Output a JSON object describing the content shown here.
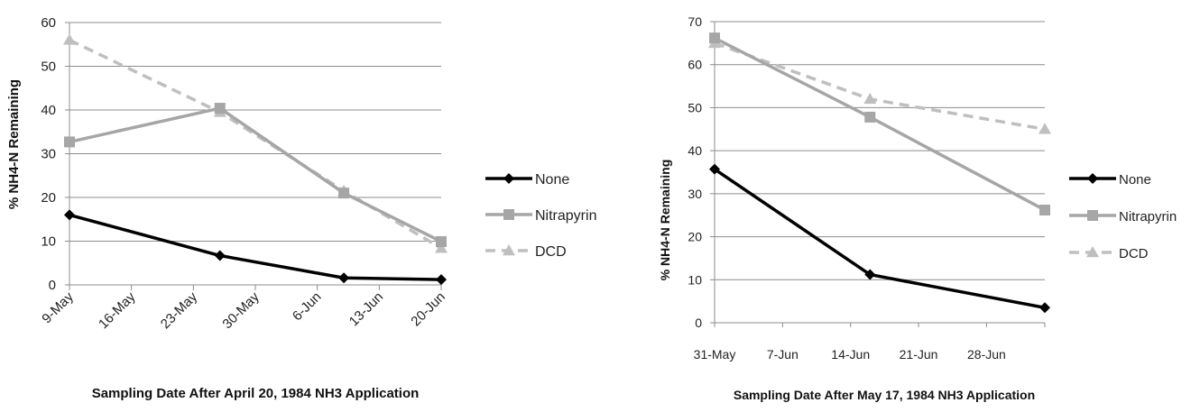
{
  "chart_data": [
    {
      "type": "line",
      "title": "",
      "xlabel": "Sampling Date After April 20, 1984 NH3 Application",
      "ylabel": "% NH4-N Remaining",
      "ylim": [
        0,
        60
      ],
      "yticks": [
        "0",
        "10",
        "20",
        "30",
        "40",
        "50",
        "60"
      ],
      "xlim": [
        "1984-05-09",
        "1984-06-20"
      ],
      "xticks": [
        {
          "date": "1984-05-09",
          "label": "9-May"
        },
        {
          "date": "1984-05-16",
          "label": "16-May"
        },
        {
          "date": "1984-05-23",
          "label": "23-May"
        },
        {
          "date": "1984-05-30",
          "label": "30-May"
        },
        {
          "date": "1984-06-06",
          "label": "6-Jun"
        },
        {
          "date": "1984-06-13",
          "label": "13-Jun"
        },
        {
          "date": "1984-06-20",
          "label": "20-Jun"
        }
      ],
      "grid": "horizontal",
      "legend": "right",
      "series": [
        {
          "name": "None",
          "color": "#000000",
          "marker": "diamond",
          "dash": "solid",
          "points": [
            {
              "x": "1984-05-09",
              "y": 16
            },
            {
              "x": "1984-05-26",
              "y": 6.7
            },
            {
              "x": "1984-06-09",
              "y": 1.6
            },
            {
              "x": "1984-06-20",
              "y": 1.2
            }
          ]
        },
        {
          "name": "Nitrapyrin",
          "color": "#a6a6a6",
          "marker": "square",
          "dash": "solid",
          "points": [
            {
              "x": "1984-05-09",
              "y": 32.7
            },
            {
              "x": "1984-05-26",
              "y": 40.4
            },
            {
              "x": "1984-06-09",
              "y": 21
            },
            {
              "x": "1984-06-20",
              "y": 9.9
            }
          ]
        },
        {
          "name": "DCD",
          "color": "#bfbfbf",
          "marker": "triangle",
          "dash": "dashed",
          "points": [
            {
              "x": "1984-05-09",
              "y": 56
            },
            {
              "x": "1984-05-26",
              "y": 39.5
            },
            {
              "x": "1984-06-09",
              "y": 21.5
            },
            {
              "x": "1984-06-20",
              "y": 8.4
            }
          ]
        }
      ]
    },
    {
      "type": "line",
      "title": "",
      "xlabel": "Sampling Date After May 17, 1984 NH3 Application",
      "ylabel": "% NH4-N Remaining",
      "ylim": [
        0,
        70
      ],
      "yticks": [
        "0",
        "10",
        "20",
        "30",
        "40",
        "50",
        "60",
        "70"
      ],
      "xlim": [
        "1984-05-31",
        "1984-07-04"
      ],
      "xticks": [
        {
          "date": "1984-05-31",
          "label": "31-May"
        },
        {
          "date": "1984-06-07",
          "label": "7-Jun"
        },
        {
          "date": "1984-06-14",
          "label": "14-Jun"
        },
        {
          "date": "1984-06-21",
          "label": "21-Jun"
        },
        {
          "date": "1984-06-28",
          "label": "28-Jun"
        }
      ],
      "grid": "horizontal",
      "legend": "right",
      "series": [
        {
          "name": "None",
          "color": "#000000",
          "marker": "diamond",
          "dash": "solid",
          "points": [
            {
              "x": "1984-05-31",
              "y": 35.7
            },
            {
              "x": "1984-06-16",
              "y": 11.2
            },
            {
              "x": "1984-07-04",
              "y": 3.5
            }
          ]
        },
        {
          "name": "Nitrapyrin",
          "color": "#a6a6a6",
          "marker": "square",
          "dash": "solid",
          "points": [
            {
              "x": "1984-05-31",
              "y": 66.2
            },
            {
              "x": "1984-06-16",
              "y": 47.8
            },
            {
              "x": "1984-07-04",
              "y": 26.2
            }
          ]
        },
        {
          "name": "DCD",
          "color": "#bfbfbf",
          "marker": "triangle",
          "dash": "dashed",
          "points": [
            {
              "x": "1984-05-31",
              "y": 65
            },
            {
              "x": "1984-06-16",
              "y": 52
            },
            {
              "x": "1984-07-04",
              "y": 45
            }
          ]
        }
      ]
    }
  ]
}
